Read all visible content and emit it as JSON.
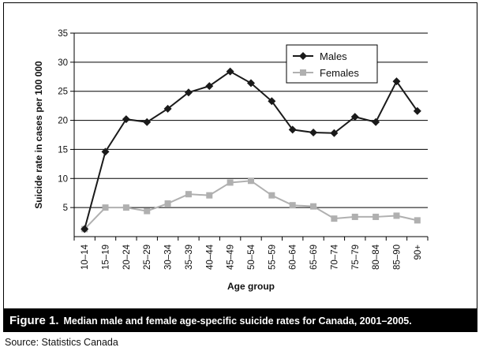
{
  "chart_data": {
    "type": "line",
    "categories": [
      "10–14",
      "15–19",
      "20–24",
      "25–29",
      "30–34",
      "35–39",
      "40–44",
      "45–49",
      "50–54",
      "55–59",
      "60–64",
      "65–69",
      "70–74",
      "75–79",
      "80–84",
      "85–90",
      "90+"
    ],
    "series": [
      {
        "name": "Males",
        "color": "#1a1a1a",
        "marker": "diamond",
        "values": [
          1.3,
          14.6,
          20.2,
          19.7,
          22.0,
          24.8,
          25.9,
          28.4,
          26.4,
          23.3,
          18.4,
          17.9,
          17.8,
          20.6,
          19.7,
          26.7,
          21.6
        ]
      },
      {
        "name": "Females",
        "color": "#b0b0b0",
        "marker": "square",
        "values": [
          1.3,
          5.0,
          5.0,
          4.4,
          5.7,
          7.3,
          7.1,
          9.3,
          9.6,
          7.1,
          5.4,
          5.2,
          3.1,
          3.4,
          3.4,
          3.6,
          2.8
        ]
      }
    ],
    "ylabel": "Suicide rate in cases per 100 000",
    "xlabel": "Age group",
    "ylim": [
      0,
      35
    ],
    "yticks": [
      5,
      10,
      15,
      20,
      25,
      30,
      35
    ],
    "grid": "horizontal",
    "legend_position": "top-right"
  },
  "caption": {
    "label": "Figure 1.",
    "text": "Median male and female age-specific suicide rates for Canada, 2001–2005."
  },
  "source": "Source: Statistics Canada"
}
